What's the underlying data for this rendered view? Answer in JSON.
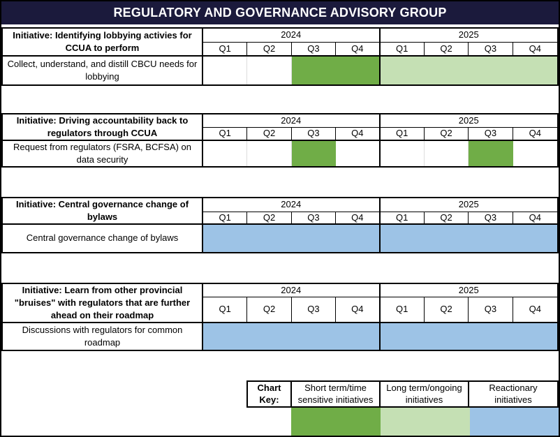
{
  "title": "REGULATORY AND GOVERNANCE ADVISORY GROUP",
  "colors": {
    "header_bg": "#1B1A3C",
    "short_term_green": "#70AD47",
    "long_term_light_green": "#C5E0B4",
    "reactionary_blue": "#9DC3E6"
  },
  "sections": [
    {
      "initiative": "Initiative: Identifying lobbying activies for CCUA to perform",
      "task": "Collect, understand, and distill CBCU needs for lobbying",
      "years": [
        "2024",
        "2025"
      ],
      "quarters": [
        "Q1",
        "Q2",
        "Q3",
        "Q4",
        "Q1",
        "Q2",
        "Q3",
        "Q4"
      ],
      "cells": [
        "",
        "",
        "green",
        "green",
        "lightgreen",
        "lightgreen",
        "lightgreen",
        "lightgreen"
      ]
    },
    {
      "initiative": "Initiative: Driving accountability back to regulators through CCUA",
      "task": "Request from regulators (FSRA, BCFSA) on data security",
      "years": [
        "2024",
        "2025"
      ],
      "quarters": [
        "Q1",
        "Q2",
        "Q3",
        "Q4",
        "Q1",
        "Q2",
        "Q3",
        "Q4"
      ],
      "cells": [
        "",
        "",
        "green",
        "",
        "",
        "",
        "green",
        ""
      ]
    },
    {
      "initiative": "Initiative: Central governance change of bylaws",
      "task": "Central governance change of bylaws",
      "years": [
        "2024",
        "2025"
      ],
      "quarters": [
        "Q1",
        "Q2",
        "Q3",
        "Q4",
        "Q1",
        "Q2",
        "Q3",
        "Q4"
      ],
      "cells": [
        "blue",
        "blue",
        "blue",
        "blue",
        "blue",
        "blue",
        "blue",
        "blue"
      ]
    },
    {
      "initiative": "Initiative: Learn from other provincial \"bruises\" with regulators that are further ahead on their roadmap",
      "task": "Discussions with regulators for common roadmap",
      "years": [
        "2024",
        "2025"
      ],
      "quarters": [
        "Q1",
        "Q2",
        "Q3",
        "Q4",
        "Q1",
        "Q2",
        "Q3",
        "Q4"
      ],
      "cells": [
        "blue",
        "blue",
        "blue",
        "blue",
        "blue",
        "blue",
        "blue",
        "blue"
      ]
    }
  ],
  "chart_key": {
    "label": "Chart Key:",
    "items": [
      {
        "label": "Short term/time sensitive initiatives",
        "fill": "green"
      },
      {
        "label": "Long term/ongoing initiatives",
        "fill": "lightgreen"
      },
      {
        "label": "Reactionary initiatives",
        "fill": "blue"
      }
    ]
  },
  "chart_data": {
    "type": "table",
    "title": "REGULATORY AND GOVERNANCE ADVISORY GROUP",
    "x": [
      "2024 Q1",
      "2024 Q2",
      "2024 Q3",
      "2024 Q4",
      "2025 Q1",
      "2025 Q2",
      "2025 Q3",
      "2025 Q4"
    ],
    "legend": {
      "green": "Short term/time sensitive initiatives",
      "lightgreen": "Long term/ongoing initiatives",
      "blue": "Reactionary initiatives"
    },
    "rows": [
      {
        "initiative": "Identifying lobbying activies for CCUA to perform",
        "task": "Collect, understand, and distill CBCU needs for lobbying",
        "fills": [
          "",
          "",
          "green",
          "green",
          "lightgreen",
          "lightgreen",
          "lightgreen",
          "lightgreen"
        ]
      },
      {
        "initiative": "Driving accountability back to regulators through CCUA",
        "task": "Request from regulators (FSRA, BCFSA) on data security",
        "fills": [
          "",
          "",
          "green",
          "",
          "",
          "",
          "green",
          ""
        ]
      },
      {
        "initiative": "Central governance change of bylaws",
        "task": "Central governance change of bylaws",
        "fills": [
          "blue",
          "blue",
          "blue",
          "blue",
          "blue",
          "blue",
          "blue",
          "blue"
        ]
      },
      {
        "initiative": "Learn from other provincial \"bruises\" with regulators that are further ahead on their roadmap",
        "task": "Discussions with regulators for common roadmap",
        "fills": [
          "blue",
          "blue",
          "blue",
          "blue",
          "blue",
          "blue",
          "blue",
          "blue"
        ]
      }
    ]
  }
}
